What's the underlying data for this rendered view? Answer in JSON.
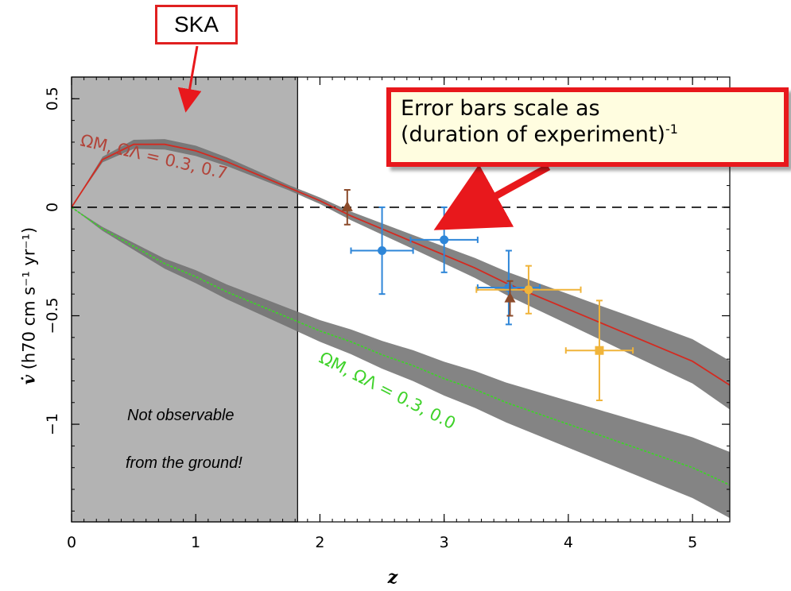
{
  "chart_data": {
    "type": "line",
    "xlabel": "z",
    "ylabel": "v̇ (h70 cm s⁻¹ yr⁻¹)",
    "xlim": [
      0,
      5.3
    ],
    "ylim": [
      -1.45,
      0.6
    ],
    "x_ticks": [
      0,
      1,
      2,
      3,
      4,
      5
    ],
    "y_ticks": [
      0.5,
      0,
      -0.5,
      -1
    ],
    "x_tick_labels": [
      "0",
      "1",
      "2",
      "3",
      "4",
      "5"
    ],
    "y_tick_labels": [
      "0.5",
      "0",
      "−0.5",
      "−1"
    ],
    "grid": false,
    "zero_line": {
      "y": 0,
      "style": "dashed"
    },
    "shaded_region": {
      "x_from": 0,
      "x_to": 1.82,
      "label_lines": [
        "Not observable",
        "from the ground!"
      ]
    },
    "series": [
      {
        "name": "ΩM, ΩΛ = 0.3, 0.7",
        "color": "#d42a20",
        "x": [
          0,
          0.25,
          0.5,
          0.75,
          1.0,
          1.25,
          1.5,
          1.75,
          2.0,
          2.25,
          2.5,
          2.75,
          3.0,
          3.25,
          3.5,
          3.75,
          4.0,
          4.25,
          4.5,
          4.75,
          5.0,
          5.3
        ],
        "y": [
          0,
          0.22,
          0.29,
          0.29,
          0.26,
          0.21,
          0.15,
          0.09,
          0.03,
          -0.04,
          -0.1,
          -0.16,
          -0.22,
          -0.28,
          -0.35,
          -0.41,
          -0.47,
          -0.53,
          -0.59,
          -0.65,
          -0.71,
          -0.82
        ],
        "band_halfwidth": [
          0,
          0.01,
          0.015,
          0.015,
          0.012,
          0.008,
          0.004,
          0.0,
          0.003,
          0.008,
          0.014,
          0.02,
          0.027,
          0.034,
          0.042,
          0.05,
          0.058,
          0.066,
          0.075,
          0.083,
          0.09,
          0.1
        ]
      },
      {
        "name": "ΩM, ΩΛ = 0.3, 0.0",
        "color": "#3fd22a",
        "x": [
          0,
          0.25,
          0.5,
          0.75,
          1.0,
          1.25,
          1.5,
          1.75,
          2.0,
          2.25,
          2.5,
          2.75,
          3.0,
          3.25,
          3.5,
          3.75,
          4.0,
          4.25,
          4.5,
          4.75,
          5.0,
          5.3
        ],
        "y": [
          0,
          -0.1,
          -0.18,
          -0.26,
          -0.32,
          -0.39,
          -0.45,
          -0.51,
          -0.57,
          -0.62,
          -0.68,
          -0.73,
          -0.79,
          -0.84,
          -0.9,
          -0.95,
          -1.0,
          -1.05,
          -1.1,
          -1.15,
          -1.2,
          -1.28
        ],
        "band_halfwidth": [
          0,
          0.006,
          0.01,
          0.014,
          0.018,
          0.022,
          0.027,
          0.032,
          0.038,
          0.045,
          0.052,
          0.059,
          0.066,
          0.073,
          0.08,
          0.088,
          0.096,
          0.104,
          0.112,
          0.12,
          0.128,
          0.14
        ]
      }
    ],
    "error_points": [
      {
        "color": "#2e86d8",
        "marker": "circle",
        "x": 2.5,
        "y": -0.2,
        "xerr": 0.25,
        "yerr": 0.2
      },
      {
        "color": "#2e86d8",
        "marker": "circle",
        "x": 3.0,
        "y": -0.15,
        "xerr": 0.27,
        "yerr": 0.15
      },
      {
        "color": "#2e86d8",
        "marker": "circle",
        "x": 3.52,
        "y": -0.37,
        "xerr": 0.25,
        "yerr": 0.17
      },
      {
        "color": "#f0b43a",
        "marker": "circle",
        "x": 3.68,
        "y": -0.38,
        "xerr": 0.42,
        "yerr": 0.11
      },
      {
        "color": "#f0b43a",
        "marker": "square",
        "x": 4.25,
        "y": -0.66,
        "xerr": 0.27,
        "yerr": 0.23
      },
      {
        "color": "#8b4a2a",
        "marker": "triangle",
        "x": 2.22,
        "y": 0.0,
        "xerr": 0,
        "yerr": 0.08
      },
      {
        "color": "#8b4a2a",
        "marker": "triangle",
        "x": 3.53,
        "y": -0.42,
        "xerr": 0,
        "yerr": 0.08
      }
    ],
    "curve_labels": [
      {
        "text": "ΩM, ΩΛ = 0.3, 0.7",
        "color": "#b2443a"
      },
      {
        "text": "ΩM, ΩΛ = 0.3, 0.0",
        "color": "#3fd22a"
      }
    ]
  },
  "annotations": {
    "ska_label": "SKA",
    "error_box_line1": "Error bars scale as",
    "error_box_line2": "(duration of experiment)",
    "error_box_sup": "-1",
    "arrow_color": "#e8181c"
  },
  "axes": {
    "ylabel_v": "v̇",
    "ylabel_rest": "(h70 cm s⁻¹ yr⁻¹)",
    "xlabel": "z"
  }
}
